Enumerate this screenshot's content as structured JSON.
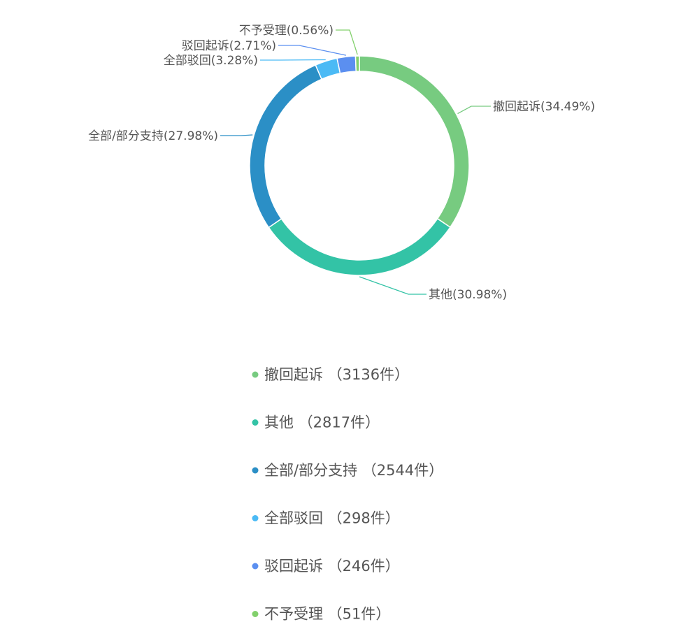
{
  "chart_data": {
    "type": "pie",
    "donut": true,
    "unit": "件",
    "legend_position": "bottom",
    "slices": [
      {
        "name": "撤回起诉",
        "value": 3136,
        "percent": "34.49%",
        "color": "#77cb80"
      },
      {
        "name": "其他",
        "value": 2817,
        "percent": "30.98%",
        "color": "#33c3a6"
      },
      {
        "name": "全部/部分支持",
        "value": 2544,
        "percent": "27.98%",
        "color": "#2b8fc6"
      },
      {
        "name": "全部驳回",
        "value": 298,
        "percent": "3.28%",
        "color": "#4bbaf5"
      },
      {
        "name": "驳回起诉",
        "value": 246,
        "percent": "2.71%",
        "color": "#5b8ff0"
      },
      {
        "name": "不予受理",
        "value": 51,
        "percent": "0.56%",
        "color": "#82d06c"
      }
    ]
  }
}
